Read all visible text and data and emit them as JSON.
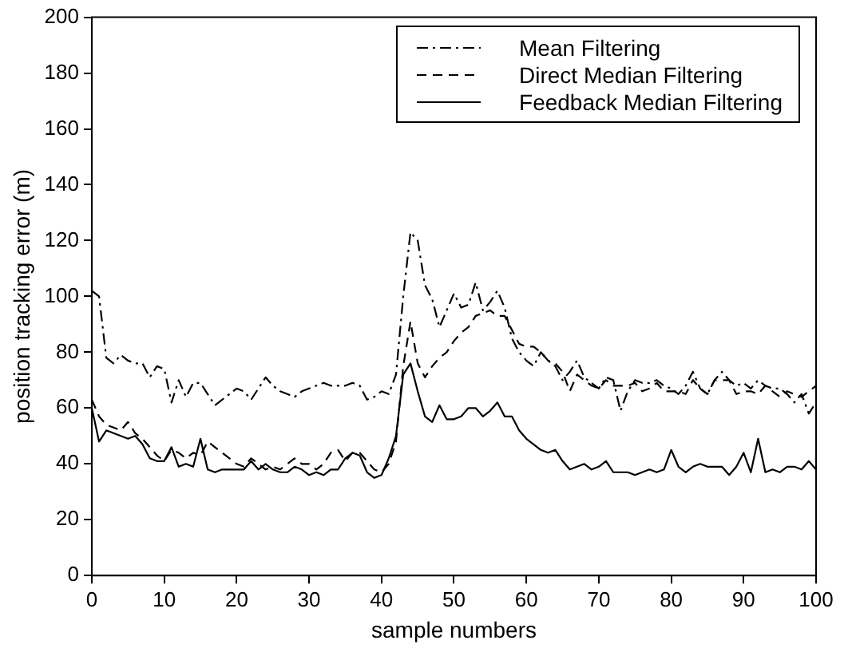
{
  "chart_data": {
    "type": "line",
    "xlabel": "sample numbers",
    "ylabel": "position tracking error (m)",
    "x": [
      0,
      1,
      2,
      3,
      4,
      5,
      6,
      7,
      8,
      9,
      10,
      11,
      12,
      13,
      14,
      15,
      16,
      17,
      18,
      19,
      20,
      21,
      22,
      23,
      24,
      25,
      26,
      27,
      28,
      29,
      30,
      31,
      32,
      33,
      34,
      35,
      36,
      37,
      38,
      39,
      40,
      41,
      42,
      43,
      44,
      45,
      46,
      47,
      48,
      49,
      50,
      51,
      52,
      53,
      54,
      55,
      56,
      57,
      58,
      59,
      60,
      61,
      62,
      63,
      64,
      65,
      66,
      67,
      68,
      69,
      70,
      71,
      72,
      73,
      74,
      75,
      76,
      77,
      78,
      79,
      80,
      81,
      82,
      83,
      84,
      85,
      86,
      87,
      88,
      89,
      90,
      91,
      92,
      93,
      94,
      95,
      96,
      97,
      98,
      99,
      100
    ],
    "series": [
      {
        "name": "Mean Filtering",
        "color": "#000000",
        "line_style": "dashdot",
        "values": [
          102,
          100,
          78,
          76,
          79,
          77,
          76,
          76,
          71,
          75,
          74,
          62,
          70,
          64,
          69,
          69,
          65,
          61,
          63,
          65,
          67,
          66,
          63,
          67,
          71,
          68,
          66,
          65,
          64,
          66,
          67,
          68,
          69,
          68,
          68,
          68,
          69,
          68,
          63,
          64,
          66,
          65,
          72,
          100,
          123,
          120,
          104,
          99,
          89,
          95,
          101,
          96,
          97,
          105,
          95,
          98,
          102,
          96,
          85,
          80,
          77,
          75,
          80,
          77,
          75,
          70,
          73,
          77,
          71,
          69,
          67,
          71,
          70,
          59,
          66,
          70,
          69,
          69,
          70,
          68,
          67,
          65,
          68,
          73,
          67,
          65,
          70,
          73,
          70,
          68,
          69,
          67,
          70,
          68,
          67,
          67,
          65,
          62,
          65,
          58,
          62
        ]
      },
      {
        "name": "Direct Median Filtering",
        "color": "#000000",
        "line_style": "dashed",
        "values": [
          63,
          57,
          54,
          53,
          52,
          55,
          51,
          49,
          46,
          43,
          41,
          45,
          44,
          42,
          44,
          43,
          48,
          46,
          44,
          42,
          40,
          39,
          42,
          40,
          38,
          39,
          38,
          40,
          42,
          40,
          40,
          38,
          40,
          44,
          45,
          41,
          44,
          44,
          41,
          38,
          37,
          40,
          48,
          75,
          91,
          76,
          71,
          75,
          78,
          80,
          84,
          87,
          89,
          93,
          94,
          95,
          93,
          93,
          88,
          83,
          82,
          82,
          80,
          77,
          76,
          73,
          66,
          72,
          70,
          68,
          67,
          70,
          68,
          68,
          68,
          69,
          66,
          67,
          69,
          66,
          66,
          66,
          65,
          70,
          67,
          65,
          70,
          70,
          70,
          65,
          66,
          66,
          65,
          68,
          66,
          64,
          66,
          65,
          64,
          66,
          68
        ]
      },
      {
        "name": "Feedback Median Filtering",
        "color": "#000000",
        "line_style": "solid",
        "values": [
          60,
          48,
          52,
          51,
          50,
          49,
          50,
          47,
          42,
          41,
          41,
          46,
          39,
          40,
          39,
          49,
          38,
          37,
          38,
          38,
          38,
          38,
          41,
          38,
          40,
          38,
          37,
          37,
          39,
          38,
          36,
          37,
          36,
          38,
          38,
          42,
          44,
          43,
          37,
          35,
          36,
          42,
          50,
          72,
          76,
          66,
          57,
          55,
          61,
          56,
          56,
          57,
          60,
          60,
          57,
          59,
          62,
          57,
          57,
          52,
          49,
          47,
          45,
          44,
          45,
          41,
          38,
          39,
          40,
          38,
          39,
          41,
          37,
          37,
          37,
          36,
          37,
          38,
          37,
          38,
          45,
          39,
          37,
          39,
          40,
          39,
          39,
          39,
          36,
          39,
          44,
          37,
          49,
          37,
          38,
          37,
          39,
          39,
          38,
          41,
          38
        ]
      }
    ],
    "xlim": [
      0,
      100
    ],
    "xticks": [
      0,
      10,
      20,
      30,
      40,
      50,
      60,
      70,
      80,
      90,
      100
    ],
    "ylim": [
      0,
      200
    ],
    "yticks": [
      0,
      20,
      40,
      60,
      80,
      100,
      120,
      140,
      160,
      180,
      200
    ],
    "grid": false,
    "legend": "top right",
    "marker": "none"
  }
}
